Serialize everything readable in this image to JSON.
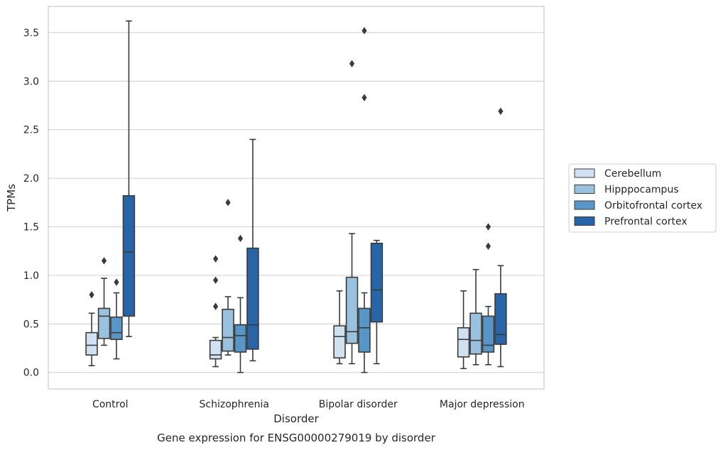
{
  "chart_data": {
    "type": "box",
    "title": "Gene expression for ENSG00000279019 by disorder",
    "xlabel": "Disorder",
    "ylabel": "TPMs",
    "ylim": [
      -0.17,
      3.77
    ],
    "yticks": [
      0.0,
      0.5,
      1.0,
      1.5,
      2.0,
      2.5,
      3.0,
      3.5
    ],
    "ytick_labels": [
      "0.0",
      "0.5",
      "1.0",
      "1.5",
      "2.0",
      "2.5",
      "3.0",
      "3.5"
    ],
    "grid": "horizontal",
    "legend_position": "right",
    "categories": [
      "Control",
      "Schizophrenia",
      "Bipolar disorder",
      "Major depression"
    ],
    "series": [
      {
        "name": "Cerebellum",
        "color": "#d0e1f2",
        "boxes": [
          {
            "whisker_low": 0.07,
            "q1": 0.18,
            "median": 0.28,
            "q3": 0.41,
            "whisker_high": 0.61,
            "outliers": [
              0.8
            ]
          },
          {
            "whisker_low": 0.06,
            "q1": 0.14,
            "median": 0.18,
            "q3": 0.33,
            "whisker_high": 0.36,
            "outliers": [
              0.68,
              0.95,
              1.17
            ]
          },
          {
            "whisker_low": 0.09,
            "q1": 0.15,
            "median": 0.37,
            "q3": 0.48,
            "whisker_high": 0.84,
            "outliers": []
          },
          {
            "whisker_low": 0.04,
            "q1": 0.16,
            "median": 0.34,
            "q3": 0.46,
            "whisker_high": 0.84,
            "outliers": []
          }
        ]
      },
      {
        "name": "Hipppocampus",
        "color": "#9ac1dd",
        "boxes": [
          {
            "whisker_low": 0.28,
            "q1": 0.35,
            "median": 0.58,
            "q3": 0.66,
            "whisker_high": 0.97,
            "outliers": [
              1.15
            ]
          },
          {
            "whisker_low": 0.18,
            "q1": 0.22,
            "median": 0.36,
            "q3": 0.65,
            "whisker_high": 0.78,
            "outliers": [
              1.75
            ]
          },
          {
            "whisker_low": 0.09,
            "q1": 0.3,
            "median": 0.42,
            "q3": 0.98,
            "whisker_high": 1.43,
            "outliers": [
              3.18
            ]
          },
          {
            "whisker_low": 0.08,
            "q1": 0.19,
            "median": 0.33,
            "q3": 0.61,
            "whisker_high": 1.06,
            "outliers": []
          }
        ]
      },
      {
        "name": "Orbitofrontal cortex",
        "color": "#5796c6",
        "boxes": [
          {
            "whisker_low": 0.14,
            "q1": 0.34,
            "median": 0.41,
            "q3": 0.57,
            "whisker_high": 0.82,
            "outliers": [
              0.93
            ]
          },
          {
            "whisker_low": 0.0,
            "q1": 0.21,
            "median": 0.38,
            "q3": 0.49,
            "whisker_high": 0.77,
            "outliers": [
              1.38
            ]
          },
          {
            "whisker_low": 0.0,
            "q1": 0.21,
            "median": 0.46,
            "q3": 0.66,
            "whisker_high": 0.82,
            "outliers": [
              2.83,
              3.52
            ]
          },
          {
            "whisker_low": 0.08,
            "q1": 0.21,
            "median": 0.28,
            "q3": 0.58,
            "whisker_high": 0.68,
            "outliers": [
              1.3,
              1.5
            ]
          }
        ]
      },
      {
        "name": "Prefrontal cortex",
        "color": "#2765a7",
        "boxes": [
          {
            "whisker_low": 0.37,
            "q1": 0.58,
            "median": 1.24,
            "q3": 1.82,
            "whisker_high": 3.62,
            "outliers": []
          },
          {
            "whisker_low": 0.12,
            "q1": 0.24,
            "median": 0.49,
            "q3": 1.28,
            "whisker_high": 2.4,
            "outliers": []
          },
          {
            "whisker_low": 0.09,
            "q1": 0.52,
            "median": 0.85,
            "q3": 1.33,
            "whisker_high": 1.36,
            "outliers": []
          },
          {
            "whisker_low": 0.06,
            "q1": 0.29,
            "median": 0.39,
            "q3": 0.81,
            "whisker_high": 1.1,
            "outliers": [
              2.69
            ]
          }
        ]
      }
    ]
  }
}
